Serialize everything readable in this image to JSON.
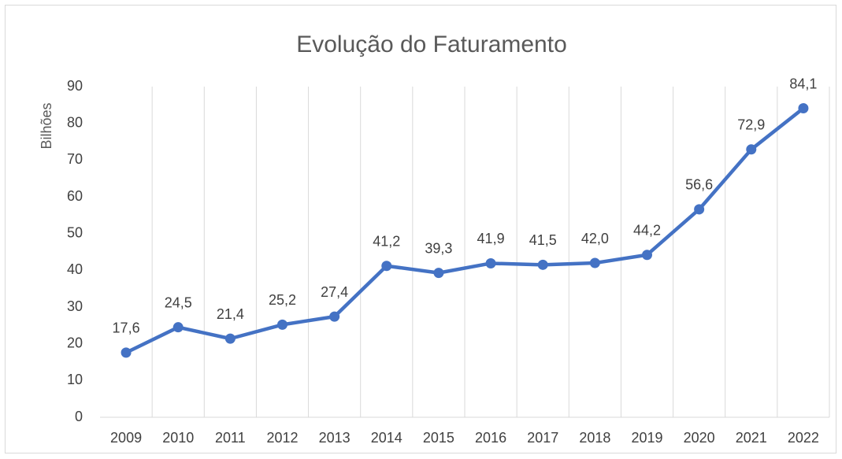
{
  "chart_data": {
    "type": "line",
    "title": "Evolução do Faturamento",
    "y_label": "Bilhões",
    "categories": [
      "2009",
      "2010",
      "2011",
      "2012",
      "2013",
      "2014",
      "2015",
      "2016",
      "2017",
      "2018",
      "2019",
      "2020",
      "2021",
      "2022"
    ],
    "values": [
      17.6,
      24.5,
      21.4,
      25.2,
      27.4,
      41.2,
      39.3,
      41.9,
      41.5,
      42.0,
      44.2,
      56.6,
      72.9,
      84.1
    ],
    "value_labels": [
      "17,6",
      "24,5",
      "21,4",
      "25,2",
      "27,4",
      "41,2",
      "39,3",
      "41,9",
      "41,5",
      "42,0",
      "44,2",
      "56,6",
      "72,9",
      "84,1"
    ],
    "color": "#4472c4",
    "ylim": [
      0,
      90
    ],
    "yticks": [
      0,
      10,
      20,
      30,
      40,
      50,
      60,
      70,
      80,
      90
    ],
    "grid": false
  }
}
